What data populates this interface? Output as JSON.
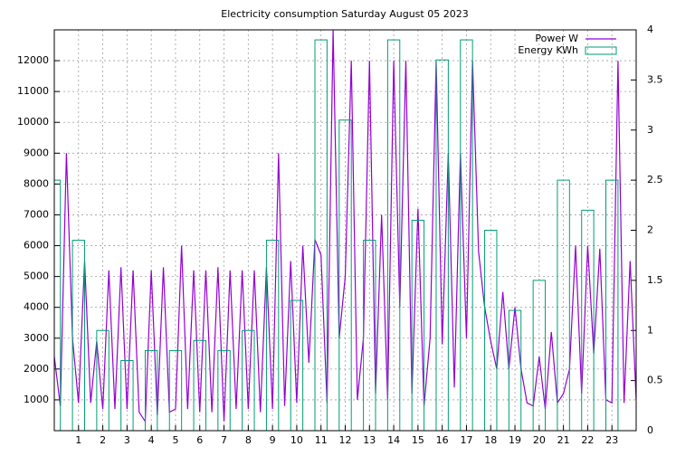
{
  "chart_data": {
    "type": "line_boxes",
    "title": "Electricity consumption Saturday August 05 2023",
    "xlim": [
      0,
      24
    ],
    "xticks": [
      1,
      2,
      3,
      4,
      5,
      6,
      7,
      8,
      9,
      10,
      11,
      12,
      13,
      14,
      15,
      16,
      17,
      18,
      19,
      20,
      21,
      22,
      23
    ],
    "ylim": [
      0,
      13000
    ],
    "yticks": [
      1000,
      2000,
      3000,
      4000,
      5000,
      6000,
      7000,
      8000,
      9000,
      10000,
      11000,
      12000
    ],
    "y2lim": [
      0,
      4
    ],
    "y2ticks": [
      0,
      0.5,
      1,
      1.5,
      2,
      2.5,
      3,
      3.5,
      4
    ],
    "grid": true,
    "legend": "top-right",
    "series": [
      {
        "name": "Power W",
        "color": "#9400d3",
        "x": [
          0,
          0.25,
          0.5,
          0.75,
          1,
          1.25,
          1.5,
          1.75,
          2,
          2.25,
          2.5,
          2.75,
          3,
          3.25,
          3.5,
          3.75,
          4,
          4.25,
          4.5,
          4.75,
          5,
          5.25,
          5.5,
          5.75,
          6,
          6.25,
          6.5,
          6.75,
          7,
          7.25,
          7.5,
          7.75,
          8,
          8.25,
          8.5,
          8.75,
          9,
          9.25,
          9.5,
          9.75,
          10,
          10.25,
          10.5,
          10.75,
          11,
          11.25,
          11.5,
          11.75,
          12,
          12.25,
          12.5,
          12.75,
          13,
          13.25,
          13.5,
          13.75,
          14,
          14.25,
          14.5,
          14.75,
          15,
          15.25,
          15.5,
          15.75,
          16,
          16.25,
          16.5,
          16.75,
          17,
          17.25,
          17.5,
          17.75,
          18,
          18.25,
          18.5,
          18.75,
          19,
          19.25,
          19.5,
          19.75,
          20,
          20.25,
          20.5,
          20.75,
          21,
          21.25,
          21.5,
          21.75,
          22,
          22.25,
          22.5,
          22.75,
          23,
          23.25,
          23.5,
          23.75,
          24
        ],
        "values": [
          2400,
          800,
          9000,
          3000,
          900,
          5500,
          900,
          2900,
          700,
          5200,
          700,
          5300,
          700,
          5200,
          600,
          300,
          5200,
          500,
          5300,
          600,
          700,
          6000,
          700,
          5200,
          600,
          5200,
          600,
          5300,
          300,
          5200,
          700,
          5200,
          700,
          5200,
          600,
          5300,
          700,
          9000,
          800,
          5500,
          900,
          6000,
          2200,
          6200,
          5700,
          900,
          13000,
          3000,
          5000,
          12000,
          1000,
          3000,
          12000,
          1200,
          7000,
          1000,
          12000,
          4000,
          12000,
          1200,
          7200,
          800,
          3000,
          12000,
          2800,
          9000,
          1400,
          9000,
          3000,
          12000,
          5800,
          4000,
          2900,
          2000,
          4500,
          2000,
          4000,
          2000,
          900,
          800,
          2400,
          700,
          3200,
          900,
          1200,
          2000,
          6000,
          1200,
          6000,
          2500,
          5900,
          1000,
          900,
          12000,
          900,
          5500,
          1000
        ]
      },
      {
        "name": "Energy KWh",
        "color": "#009e73",
        "axis": "y2",
        "x": [
          0,
          1,
          2,
          3,
          4,
          5,
          6,
          7,
          8,
          9,
          10,
          11,
          12,
          13,
          14,
          15,
          16,
          17,
          18,
          19,
          20,
          21,
          22,
          23
        ],
        "values": [
          2.5,
          1.9,
          1.0,
          0.7,
          0.8,
          0.8,
          0.9,
          0.8,
          1.0,
          1.9,
          1.3,
          3.9,
          3.1,
          1.9,
          3.9,
          2.1,
          3.7,
          3.9,
          2.0,
          1.2,
          1.5,
          2.5,
          2.2,
          2.5
        ]
      }
    ]
  }
}
